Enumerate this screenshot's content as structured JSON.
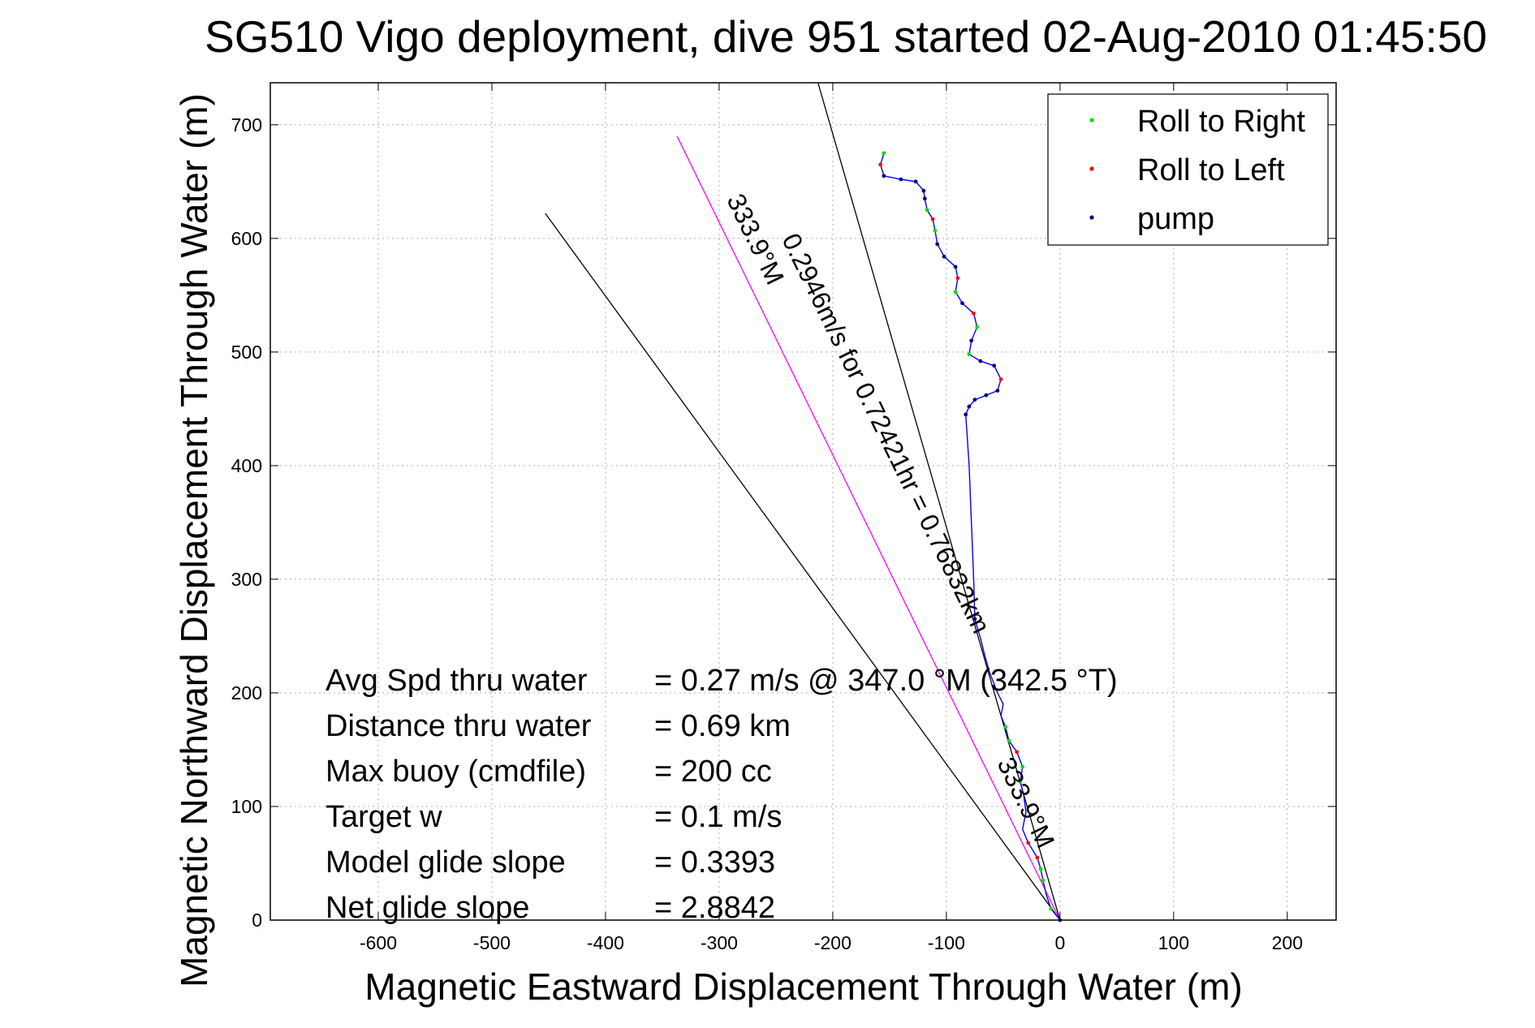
{
  "chart_data": {
    "type": "line",
    "title": "SG510 Vigo deployment, dive 951 started 02-Aug-2010 01:45:50",
    "xlabel": "Magnetic Eastward Displacement Through Water (m)",
    "ylabel": "Magnetic Northward Displacement Through Water (m)",
    "xlim": [
      -695,
      243
    ],
    "ylim": [
      0,
      737
    ],
    "xticks": [
      -600,
      -500,
      -400,
      -300,
      -200,
      -100,
      0,
      100,
      200
    ],
    "yticks": [
      0,
      100,
      200,
      300,
      400,
      500,
      600,
      700
    ],
    "xtick_labels": [
      "-600",
      "-500",
      "-400",
      "-300",
      "-200",
      "-100",
      "0",
      "100",
      "200"
    ],
    "ytick_labels": [
      "0",
      "100",
      "200",
      "300",
      "400",
      "500",
      "600",
      "700"
    ],
    "grid": true,
    "legend_position": "top-right",
    "legend": [
      {
        "name": "Roll to Right",
        "color": "#00dd00"
      },
      {
        "name": "Roll to Left",
        "color": "#ff0000"
      },
      {
        "name": "pump",
        "color": "#000080"
      }
    ],
    "track": {
      "color": "#0000ff",
      "points": [
        [
          0,
          0
        ],
        [
          -8,
          10
        ],
        [
          -12,
          22
        ],
        [
          -15,
          35
        ],
        [
          -17,
          45
        ],
        [
          -20,
          55
        ],
        [
          -28,
          68
        ],
        [
          -33,
          80
        ],
        [
          -30,
          95
        ],
        [
          -32,
          110
        ],
        [
          -35,
          122
        ],
        [
          -33,
          135
        ],
        [
          -38,
          148
        ],
        [
          -45,
          158
        ],
        [
          -48,
          170
        ],
        [
          -52,
          180
        ],
        [
          -50,
          190
        ],
        [
          -55,
          200
        ],
        [
          -62,
          218
        ],
        [
          -66,
          232
        ],
        [
          -70,
          248
        ],
        [
          -75,
          265
        ],
        [
          -76,
          300
        ],
        [
          -78,
          350
        ],
        [
          -80,
          400
        ],
        [
          -83,
          445
        ],
        [
          -80,
          452
        ],
        [
          -75,
          458
        ],
        [
          -65,
          462
        ],
        [
          -55,
          466
        ],
        [
          -52,
          476
        ],
        [
          -58,
          488
        ],
        [
          -70,
          492
        ],
        [
          -80,
          498
        ],
        [
          -78,
          510
        ],
        [
          -73,
          522
        ],
        [
          -76,
          534
        ],
        [
          -86,
          543
        ],
        [
          -92,
          553
        ],
        [
          -90,
          565
        ],
        [
          -92,
          575
        ],
        [
          -102,
          584
        ],
        [
          -108,
          595
        ],
        [
          -110,
          607
        ],
        [
          -112,
          617
        ],
        [
          -117,
          625
        ],
        [
          -119,
          635
        ],
        [
          -120,
          642
        ],
        [
          -127,
          650
        ],
        [
          -140,
          652
        ],
        [
          -155,
          655
        ],
        [
          -158,
          665
        ],
        [
          -155,
          675
        ]
      ],
      "roll_right": [
        [
          -8,
          10
        ],
        [
          -15,
          35
        ],
        [
          -17,
          45
        ],
        [
          -35,
          122
        ],
        [
          -33,
          135
        ],
        [
          -45,
          158
        ],
        [
          -48,
          170
        ],
        [
          -73,
          522
        ],
        [
          -92,
          553
        ],
        [
          -110,
          607
        ],
        [
          -117,
          625
        ],
        [
          -155,
          675
        ],
        [
          -80,
          498
        ]
      ],
      "roll_left": [
        [
          -20,
          55
        ],
        [
          -28,
          68
        ],
        [
          -38,
          148
        ],
        [
          -52,
          476
        ],
        [
          -76,
          534
        ],
        [
          -90,
          565
        ],
        [
          -112,
          617
        ],
        [
          -158,
          665
        ]
      ],
      "pump": [
        [
          0,
          0
        ],
        [
          -75,
          265
        ],
        [
          -83,
          445
        ],
        [
          -80,
          452
        ],
        [
          -75,
          458
        ],
        [
          -65,
          462
        ],
        [
          -55,
          466
        ],
        [
          -58,
          488
        ],
        [
          -70,
          492
        ],
        [
          -78,
          510
        ],
        [
          -86,
          543
        ],
        [
          -92,
          575
        ],
        [
          -102,
          584
        ],
        [
          -108,
          595
        ],
        [
          -119,
          635
        ],
        [
          -120,
          642
        ],
        [
          -127,
          650
        ],
        [
          -140,
          652
        ],
        [
          -155,
          655
        ]
      ]
    },
    "reference_lines": [
      {
        "name": "heading-line-333.9",
        "color": "#ff00ff",
        "from": [
          0,
          0
        ],
        "to": [
          -337,
          690
        ]
      },
      {
        "name": "bound-line-1",
        "color": "#000000",
        "from": [
          0,
          0
        ],
        "to": [
          -453,
          622
        ]
      },
      {
        "name": "bound-line-2",
        "color": "#000000",
        "from": [
          0,
          0
        ],
        "to": [
          -213,
          737
        ]
      }
    ],
    "annotations": [
      {
        "text": "0.2946m/s for 0.72421hr = 0.76832km",
        "x": -160,
        "y": 425,
        "angle": 64.0
      },
      {
        "text": "333.9°M",
        "x": -275,
        "y": 596,
        "angle": 64.0
      },
      {
        "text": "333.9°M",
        "x": -37,
        "y": 100,
        "angle": 64.0
      }
    ],
    "stats": [
      {
        "label": "Avg Spd thru water",
        "value": "=  0.27 m/s @ 347.0 °M (342.5 °T)"
      },
      {
        "label": "Distance thru water",
        "value": "=  0.69 km"
      },
      {
        "label": "Max buoy (cmdfile)",
        "value": "= 200 cc"
      },
      {
        "label": "Target w",
        "value": "= 0.1 m/s"
      },
      {
        "label": "Model glide slope",
        "value": "= 0.3393"
      },
      {
        "label": "Net glide slope",
        "value": "= 2.8842"
      }
    ]
  }
}
